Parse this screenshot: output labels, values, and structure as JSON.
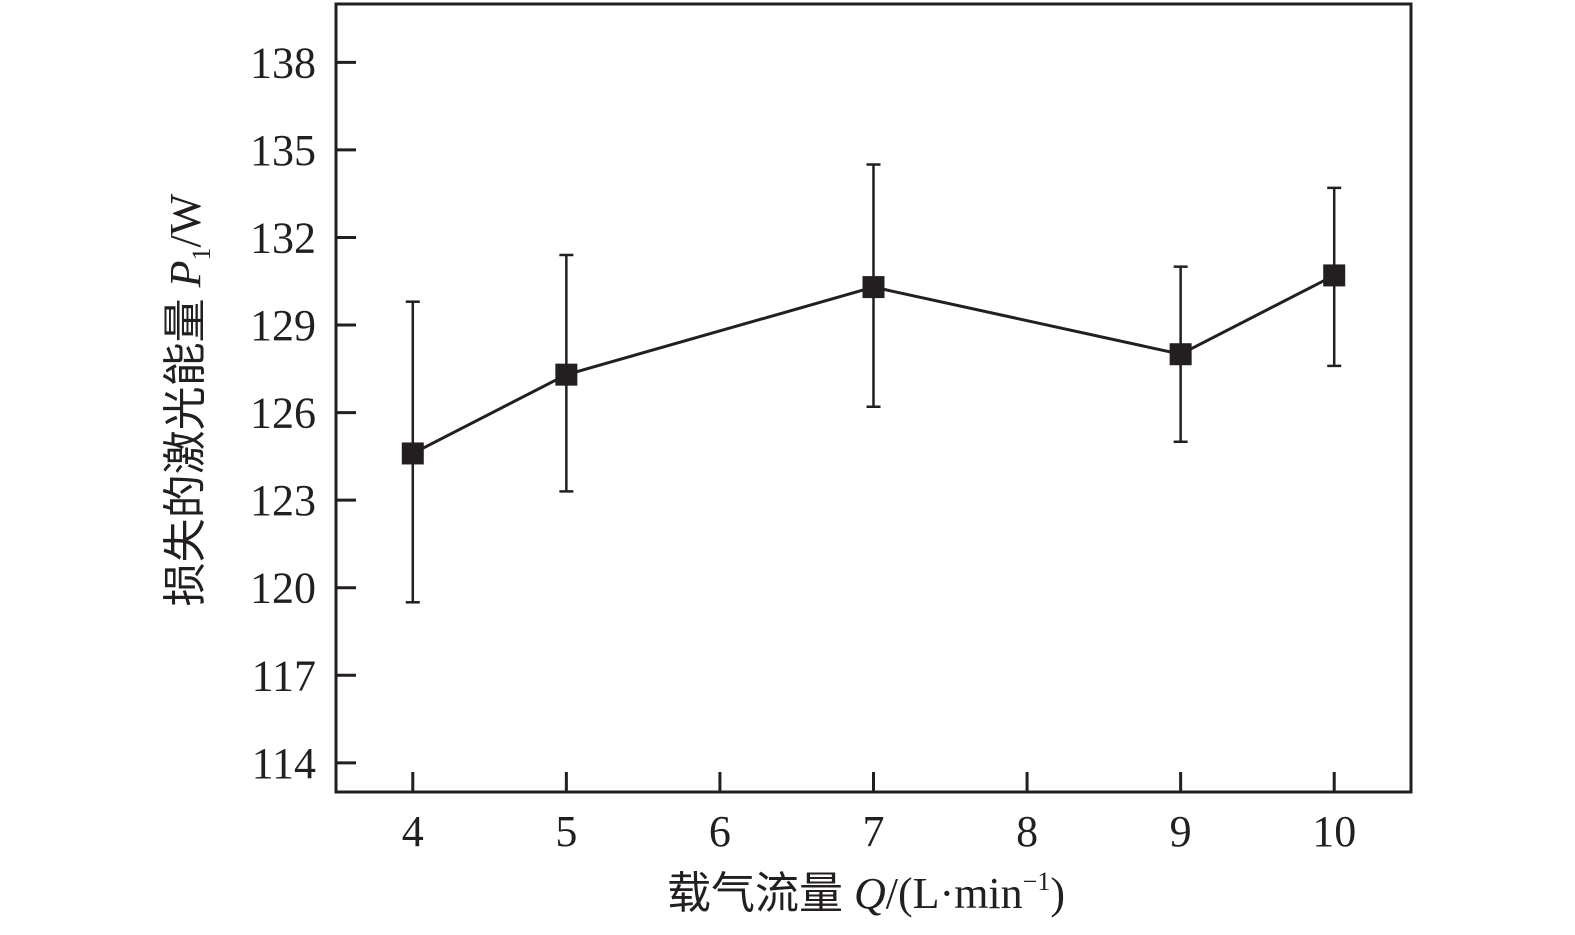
{
  "chart_data": {
    "type": "line",
    "title": "",
    "xlabel": "载气流量 Q/(L·min⁻¹)",
    "xlabel_parts": {
      "prefix": "载气流量 ",
      "var": "Q",
      "unit": "/(L·min",
      "sup": "−1",
      "close": ")"
    },
    "ylabel": "损失的激光能量 P1/W",
    "ylabel_parts": {
      "prefix": "损失的激光能量 ",
      "var": "P",
      "sub": "1",
      "unit": "/W"
    },
    "xlim": [
      3.5,
      10.5
    ],
    "ylim": [
      113,
      140
    ],
    "xticks": [
      4,
      5,
      6,
      7,
      8,
      9,
      10
    ],
    "yticks": [
      114,
      117,
      120,
      123,
      126,
      129,
      132,
      135,
      138
    ],
    "grid": false,
    "legend": "none",
    "marker": "square",
    "color": "#231f20",
    "x": [
      4,
      5,
      7,
      9,
      10
    ],
    "y": [
      124.6,
      127.3,
      130.3,
      128.0,
      130.7
    ],
    "error_upper": [
      129.8,
      131.4,
      134.5,
      131.0,
      133.7
    ],
    "error_lower": [
      119.5,
      123.3,
      126.2,
      125.0,
      127.6
    ]
  }
}
